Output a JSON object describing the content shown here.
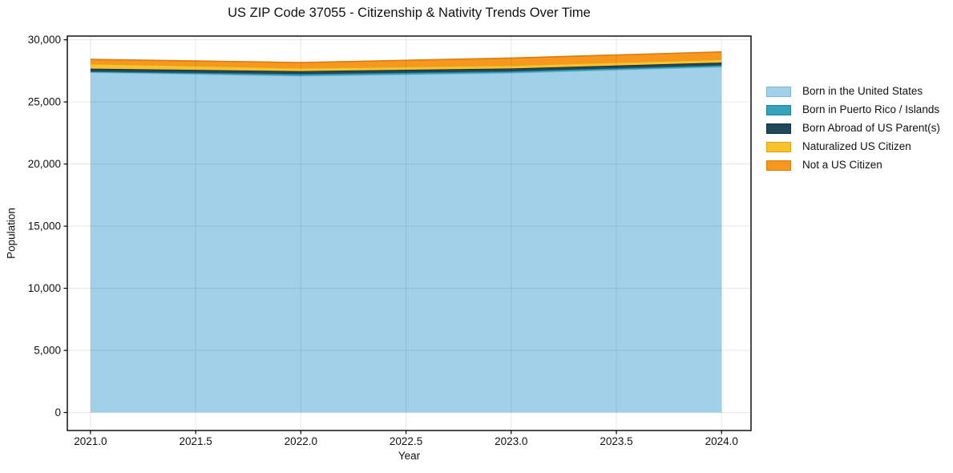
{
  "figure": {
    "background": "#ffffff"
  },
  "chart_data": {
    "type": "area",
    "stacked": true,
    "title": "US ZIP Code 37055 - Citizenship & Nativity Trends Over Time",
    "xlabel": "Year",
    "ylabel": "Population",
    "x": [
      2021,
      2022,
      2023,
      2024
    ],
    "series": [
      {
        "name": "Born in the United States",
        "values": [
          27380,
          27090,
          27330,
          27820
        ],
        "color": "#a0d1e8",
        "edge_color": "#7fb8d4"
      },
      {
        "name": "Born in Puerto Rico / Islands",
        "values": [
          70,
          150,
          130,
          130
        ],
        "color": "#36a2bd",
        "edge_color": "#26809a"
      },
      {
        "name": "Born Abroad of US Parent(s)",
        "values": [
          230,
          240,
          230,
          220
        ],
        "color": "#1f485a",
        "edge_color": "#132f3d"
      },
      {
        "name": "Naturalized US Citizen",
        "values": [
          390,
          260,
          260,
          260
        ],
        "color": "#fcc22d",
        "edge_color": "#dca414"
      },
      {
        "name": "Not a US Citizen",
        "values": [
          350,
          430,
          580,
          600
        ],
        "color": "#f8971d",
        "edge_color": "#d87d0e"
      }
    ],
    "totals": [
      28420,
      28170,
      28530,
      29030
    ],
    "xlim": [
      2020.89,
      2024.14
    ],
    "ylim": [
      -1450,
      30300
    ],
    "xticks": [
      2021.0,
      2021.5,
      2022.0,
      2022.5,
      2023.0,
      2023.5,
      2024.0
    ],
    "xtick_labels": [
      "2021.0",
      "2021.5",
      "2022.0",
      "2022.5",
      "2023.0",
      "2023.5",
      "2024.0"
    ],
    "yticks": [
      0,
      5000,
      10000,
      15000,
      20000,
      25000,
      30000
    ],
    "ytick_labels": [
      "0",
      "5,000",
      "10,000",
      "15,000",
      "20,000",
      "25,000",
      "30,000"
    ],
    "grid": true,
    "grid_color": "#e8e8e8",
    "spine_color": "#000000",
    "tick_color": "#000000",
    "legend_position": "outside right"
  }
}
